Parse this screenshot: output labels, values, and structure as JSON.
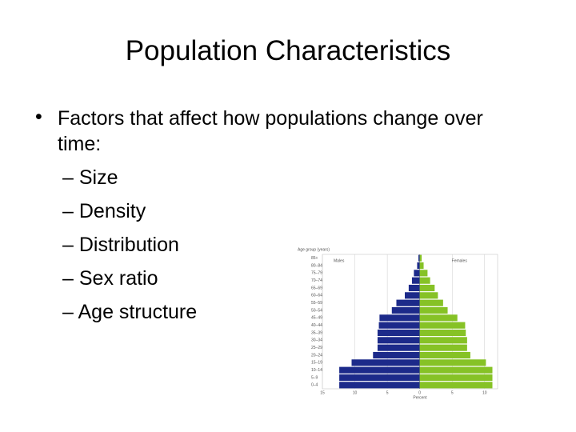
{
  "title": "Population Characteristics",
  "bullets": [
    "Factors that affect how populations change over time:",
    "Size",
    "Density",
    "Distribution",
    "Sex ratio",
    "Age structure"
  ],
  "chart_data": {
    "type": "pyramid",
    "ylabel": "Age group (years)",
    "xlabel": "Percent",
    "categories": [
      "0–4",
      "5–9",
      "10–14",
      "15–19",
      "20–24",
      "25–29",
      "30–34",
      "35–39",
      "40–44",
      "45–49",
      "50–54",
      "55–59",
      "60–64",
      "65–69",
      "70–74",
      "75–79",
      "80–84",
      "85+"
    ],
    "series": [
      {
        "name": "Males",
        "color": "#1c2a8a",
        "side": "left",
        "values": [
          12.4,
          12.4,
          12.4,
          10.5,
          7.2,
          6.5,
          6.5,
          6.5,
          6.3,
          6.2,
          4.3,
          3.6,
          2.3,
          1.7,
          1.2,
          0.9,
          0.4,
          0.2
        ]
      },
      {
        "name": "Females",
        "color": "#86c226",
        "side": "right",
        "values": [
          11.2,
          11.2,
          11.2,
          10.2,
          7.8,
          7.3,
          7.3,
          7.1,
          7.0,
          5.8,
          4.3,
          3.6,
          2.8,
          2.3,
          1.6,
          1.2,
          0.6,
          0.3
        ]
      }
    ],
    "xlim": [
      -15,
      12
    ],
    "xticks": [
      {
        "value": -15,
        "label": "15"
      },
      {
        "value": -10,
        "label": "10"
      },
      {
        "value": -5,
        "label": "5"
      },
      0,
      5,
      10
    ],
    "grid": true
  }
}
